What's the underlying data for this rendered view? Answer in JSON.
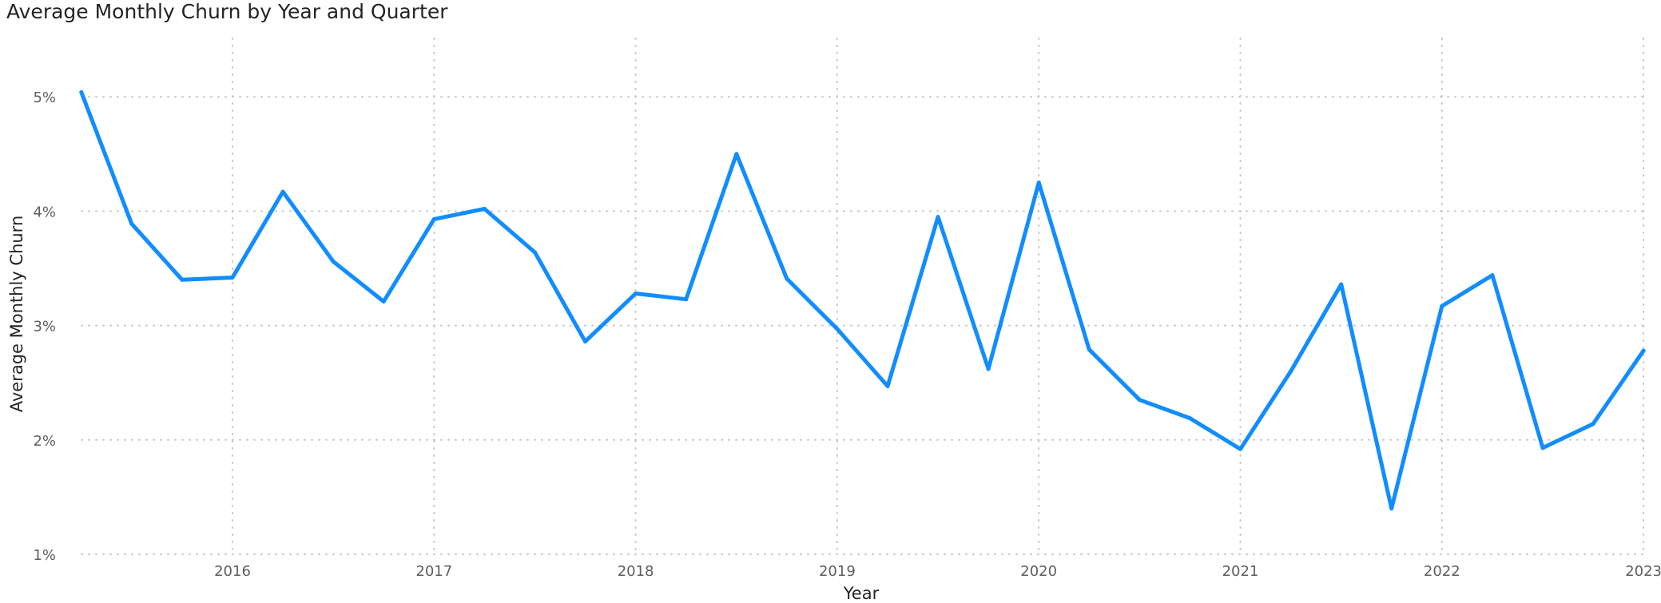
{
  "chart_data": {
    "type": "line",
    "title": "Average Monthly Churn by Year and Quarter",
    "xlabel": "Year",
    "ylabel": "Average Monthly Churn",
    "y_tick_labels": [
      "1%",
      "2%",
      "3%",
      "4%",
      "5%"
    ],
    "y_ticks": [
      1,
      2,
      3,
      4,
      5
    ],
    "ylim": [
      1,
      5.5
    ],
    "x_tick_labels": [
      "2016",
      "2017",
      "2018",
      "2019",
      "2020",
      "2021",
      "2022",
      "2023"
    ],
    "x_ticks": [
      2016,
      2017,
      2018,
      2019,
      2020,
      2021,
      2022,
      2023
    ],
    "xlim": [
      2015.1,
      2023.09
    ],
    "grid": true,
    "legend": "none",
    "series": [
      {
        "color": "#118dff",
        "x": [
          2015.25,
          2015.5,
          2015.75,
          2016.0,
          2016.25,
          2016.5,
          2016.75,
          2017.0,
          2017.25,
          2017.5,
          2017.75,
          2018.0,
          2018.25,
          2018.5,
          2018.75,
          2019.0,
          2019.25,
          2019.5,
          2019.75,
          2020.0,
          2020.25,
          2020.5,
          2020.75,
          2021.0,
          2021.25,
          2021.5,
          2021.75,
          2022.0,
          2022.25,
          2022.5,
          2022.75,
          2023.0
        ],
        "values": [
          5.04,
          3.89,
          3.4,
          3.42,
          4.17,
          3.56,
          3.21,
          3.93,
          4.02,
          3.64,
          2.86,
          3.28,
          3.23,
          4.5,
          3.41,
          2.97,
          2.47,
          3.95,
          2.62,
          4.25,
          2.79,
          2.35,
          2.19,
          1.92,
          2.6,
          3.36,
          1.4,
          3.17,
          3.44,
          1.93,
          2.14,
          2.78
        ]
      }
    ]
  }
}
